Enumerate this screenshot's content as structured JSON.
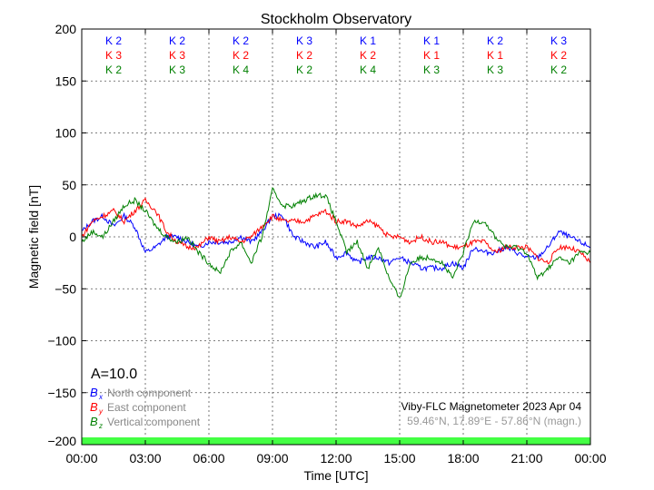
{
  "chart_data": {
    "type": "line",
    "title": "Stockholm Observatory",
    "xlabel": "Time [UTC]",
    "ylabel": "Magnetic field [nT]",
    "ylim": [
      -200,
      200
    ],
    "xlim_hours": [
      0,
      24
    ],
    "grid": true,
    "yticks": [
      "200",
      "150",
      "100",
      "50",
      "0",
      "−50",
      "−100",
      "−150",
      "−200"
    ],
    "ytick_values": [
      200,
      150,
      100,
      50,
      0,
      -50,
      -100,
      -150,
      -200
    ],
    "xticks": [
      "00:00",
      "03:00",
      "06:00",
      "09:00",
      "12:00",
      "15:00",
      "18:00",
      "21:00",
      "00:00"
    ],
    "k_indices": {
      "x": [
        "K 2",
        "K 2",
        "K 2",
        "K 3",
        "K 1",
        "K 1",
        "K 2",
        "K 3"
      ],
      "y": [
        "K 3",
        "K 3",
        "K 2",
        "K 2",
        "K 2",
        "K 1",
        "K 1",
        "K 2"
      ],
      "z": [
        "K 2",
        "K 3",
        "K 4",
        "K 2",
        "K 4",
        "K 3",
        "K 3",
        "K 2"
      ]
    },
    "a_index": "A=10.0",
    "legend": {
      "placement": "bottom-left",
      "entries": [
        {
          "symbol": "B",
          "sub": "x",
          "label": "North component",
          "color": "#0000ff"
        },
        {
          "symbol": "B",
          "sub": "y",
          "label": "East component",
          "color": "#ff0000"
        },
        {
          "symbol": "B",
          "sub": "z",
          "label": "Vertical component",
          "color": "#008000"
        }
      ]
    },
    "station": "Viby-FLC Magnetometer 2023 Apr 04",
    "coords": "59.46°N, 17.89°E - 57.86°N (magn.)",
    "activity_bar_color": "#44ff44",
    "sample_interval_hours": 0.5,
    "series": [
      {
        "name": "Bx",
        "color": "#0000ff",
        "values": [
          5,
          15,
          20,
          10,
          20,
          10,
          -15,
          -10,
          0,
          0,
          -5,
          -10,
          -5,
          -5,
          -5,
          0,
          -5,
          5,
          20,
          20,
          0,
          -5,
          -10,
          -5,
          -20,
          -15,
          -25,
          -20,
          -20,
          -25,
          -20,
          -25,
          -30,
          -30,
          -30,
          -25,
          -30,
          -10,
          -15,
          -15,
          -10,
          -15,
          -20,
          -20,
          -10,
          5,
          0,
          -5,
          -10
        ]
      },
      {
        "name": "By",
        "color": "#ff0000",
        "values": [
          0,
          15,
          20,
          25,
          15,
          25,
          35,
          25,
          5,
          -5,
          -10,
          -10,
          0,
          -5,
          0,
          -5,
          0,
          10,
          20,
          15,
          15,
          15,
          20,
          25,
          15,
          15,
          10,
          15,
          10,
          0,
          0,
          -5,
          0,
          -5,
          -5,
          -10,
          -10,
          -5,
          -5,
          -15,
          -10,
          -10,
          -10,
          -20,
          -25,
          -10,
          -10,
          -15,
          -25
        ]
      },
      {
        "name": "Bz",
        "color": "#008000",
        "values": [
          -5,
          5,
          0,
          15,
          30,
          35,
          25,
          10,
          0,
          -5,
          0,
          -15,
          -25,
          -35,
          -15,
          -5,
          -25,
          0,
          45,
          30,
          30,
          35,
          40,
          40,
          15,
          -15,
          -5,
          -30,
          -10,
          -40,
          -60,
          -25,
          -20,
          -20,
          -25,
          -40,
          -15,
          15,
          15,
          0,
          -10,
          -10,
          -15,
          -40,
          -30,
          -20,
          -25,
          -15,
          -15
        ]
      }
    ]
  }
}
